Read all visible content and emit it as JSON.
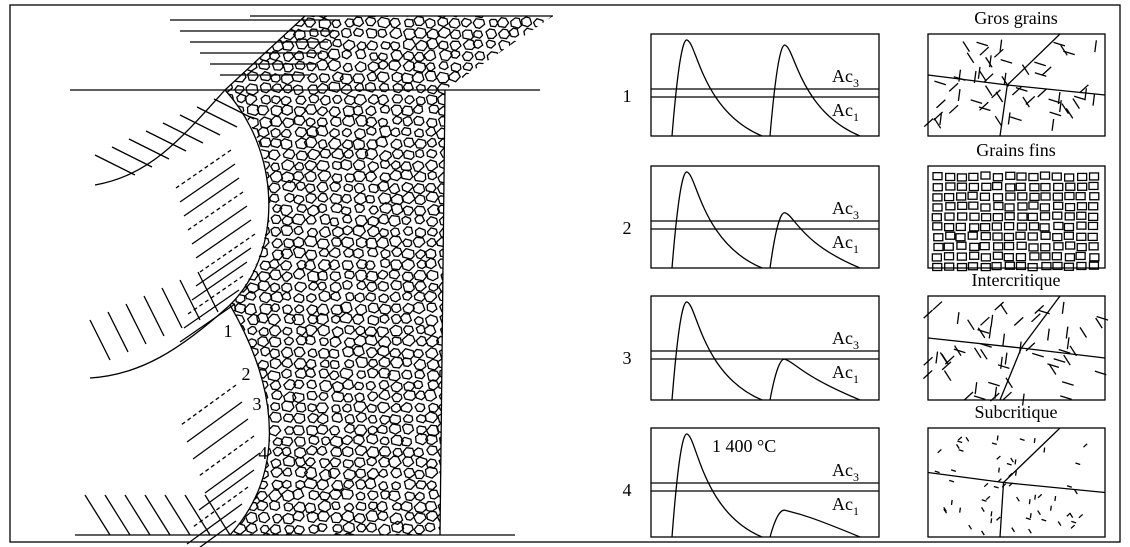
{
  "zone_labels": [
    "1",
    "2",
    "3",
    "4"
  ],
  "peak_label": "1 400 °C",
  "panels": [
    {
      "number": "1",
      "title": "Gros grains",
      "ac3": {
        "main": "Ac",
        "sub": "3"
      },
      "ac1": {
        "main": "Ac",
        "sub": "1"
      }
    },
    {
      "number": "2",
      "title": "Grains fins",
      "ac3": {
        "main": "Ac",
        "sub": "3"
      },
      "ac1": {
        "main": "Ac",
        "sub": "1"
      }
    },
    {
      "number": "3",
      "title": "Intercritique",
      "ac3": {
        "main": "Ac",
        "sub": "3"
      },
      "ac1": {
        "main": "Ac",
        "sub": "1"
      }
    },
    {
      "number": "4",
      "title": "Subcritique",
      "ac3": {
        "main": "Ac",
        "sub": "3"
      },
      "ac1": {
        "main": "Ac",
        "sub": "1"
      }
    }
  ]
}
